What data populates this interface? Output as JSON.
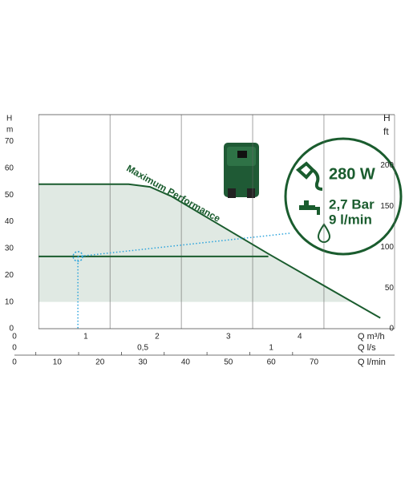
{
  "chart_data": {
    "type": "line",
    "y_title": "H",
    "y_unit": "m",
    "y2_title": "H",
    "y2_unit": "ft",
    "ylim": [
      0,
      80
    ],
    "yticks": [
      0,
      10,
      20,
      30,
      40,
      50,
      60,
      70
    ],
    "y2lim": [
      0,
      262.5
    ],
    "y2ticks": [
      0,
      50,
      100,
      150,
      200
    ],
    "xlim": [
      0,
      5.33
    ],
    "xgrid": [
      0.34,
      1.34,
      2.34,
      3.34,
      4.34,
      5.33
    ],
    "x_axes": [
      {
        "label": "Q m³/h",
        "ticks": [
          0,
          1,
          2,
          3,
          4
        ]
      },
      {
        "label": "Q l/s",
        "ticks": [
          {
            "value": 0,
            "label": "0"
          },
          {
            "value": 1.8,
            "label": "0,5"
          },
          {
            "value": 3.6,
            "label": "1"
          }
        ]
      },
      {
        "label": "Q l/min",
        "ticks": [
          {
            "value": 0,
            "label": "0"
          },
          {
            "value": 0.6,
            "label": "10"
          },
          {
            "value": 1.2,
            "label": "20"
          },
          {
            "value": 1.8,
            "label": "30"
          },
          {
            "value": 2.4,
            "label": "40"
          },
          {
            "value": 3.0,
            "label": "50"
          },
          {
            "value": 3.6,
            "label": "60"
          },
          {
            "value": 4.2,
            "label": "70"
          }
        ],
        "minor_ticks": [
          0.3,
          0.9,
          1.5,
          2.1,
          2.7,
          3.3,
          3.9
        ]
      }
    ],
    "series": [
      {
        "name": "Maximum Performance",
        "color": "#1a5c2e",
        "x": [
          0.34,
          1.6,
          1.9,
          2.2,
          3.56,
          5.13
        ],
        "values": [
          54,
          54,
          53,
          49.5,
          28,
          4
        ]
      },
      {
        "color": "#1a5c2e",
        "x": [
          0.34,
          3.56
        ],
        "values": [
          27,
          27
        ]
      }
    ],
    "shade_floor": 10,
    "shade_color": "#e0e9e3",
    "operating_point": {
      "x": 0.89,
      "y": 27,
      "color": "#2aa3dc",
      "leader_x": 3.87,
      "leader_y": 35.7
    },
    "badge": {
      "power": "280 W",
      "pressure": "2,7 Bar",
      "flow": "9 l/min"
    }
  }
}
